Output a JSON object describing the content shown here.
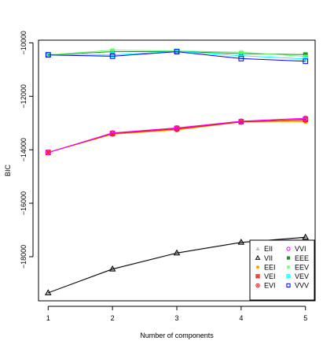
{
  "chart_data": {
    "type": "line",
    "xlabel": "Number of components",
    "ylabel": "BIC",
    "x": [
      1,
      2,
      3,
      4,
      5
    ],
    "xlim": [
      0.85,
      5.15
    ],
    "ylim": [
      -19650,
      -9900
    ],
    "xticks": [
      1,
      2,
      3,
      4,
      5
    ],
    "yticks": [
      -18000,
      -16000,
      -14000,
      -12000,
      -10000
    ],
    "grid": false,
    "legend_position": "bottom-right",
    "series": [
      {
        "name": "EII",
        "marker": "triangle-filled",
        "color": "#bebebe",
        "values": [
          -19350,
          -18480,
          -17880,
          -17480,
          -17300
        ]
      },
      {
        "name": "VII",
        "marker": "triangle-open",
        "color": "#000000",
        "values": [
          -19350,
          -18460,
          -17860,
          -17460,
          -17270
        ]
      },
      {
        "name": "EEI",
        "marker": "circle-filled",
        "color": "#ffa500",
        "values": [
          -14100,
          -13420,
          -13260,
          -12960,
          -12950
        ]
      },
      {
        "name": "VEI",
        "marker": "square-x",
        "color": "#e41a1c",
        "values": [
          -14100,
          -13390,
          -13200,
          -12950,
          -12860
        ]
      },
      {
        "name": "EVI",
        "marker": "circle-dot",
        "color": "#e41a1c",
        "values": [
          -14100,
          -13400,
          -13230,
          -12960,
          -12880
        ]
      },
      {
        "name": "VVI",
        "marker": "circle-open",
        "color": "#ff00ff",
        "values": [
          -14100,
          -13370,
          -13180,
          -12930,
          -12820
        ]
      },
      {
        "name": "EEE",
        "marker": "square-filled",
        "color": "#228b22",
        "values": [
          -10450,
          -10330,
          -10320,
          -10400,
          -10440
        ]
      },
      {
        "name": "EEV",
        "marker": "square-hash",
        "color": "#66ff66",
        "values": [
          -10450,
          -10270,
          -10300,
          -10350,
          -10510
        ]
      },
      {
        "name": "VEV",
        "marker": "square-cross",
        "color": "#00ffff",
        "values": [
          -10450,
          -10450,
          -10320,
          -10480,
          -10600
        ]
      },
      {
        "name": "VVV",
        "marker": "square-open",
        "color": "#0000ff",
        "values": [
          -10450,
          -10500,
          -10330,
          -10590,
          -10690
        ]
      }
    ]
  }
}
